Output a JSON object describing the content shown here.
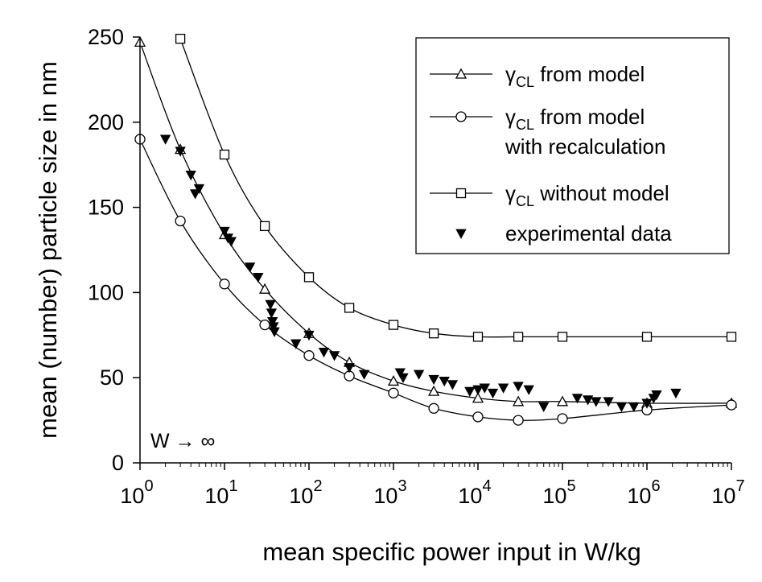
{
  "chart_data": {
    "type": "line",
    "xlabel": "mean specific power input in W/kg",
    "ylabel": "mean (number) particle size in nm",
    "xscale": "log",
    "xlim": [
      1,
      10000000
    ],
    "ylim": [
      0,
      250
    ],
    "x_tick_values": [
      1,
      10,
      100,
      1000,
      10000,
      100000,
      1000000,
      10000000
    ],
    "x_tick_exponents": [
      "0",
      "1",
      "2",
      "3",
      "4",
      "5",
      "6",
      "7"
    ],
    "x_tick_base": "10",
    "y_ticks": [
      "0",
      "50",
      "100",
      "150",
      "200",
      "250"
    ],
    "y_tick_values": [
      0,
      50,
      100,
      150,
      200,
      250
    ],
    "grid": false,
    "legend_position": "top-right",
    "annotation": "W → ∞",
    "series": [
      {
        "name": "γCL from model",
        "symbol": "γ",
        "subscript": "CL",
        "suffix": " from model",
        "marker": "triangle-open",
        "x": [
          1,
          3,
          10,
          30,
          100,
          300,
          1000,
          3000,
          10000,
          30000,
          100000,
          1000000,
          10000000
        ],
        "y": [
          247,
          184,
          134,
          102,
          76,
          59,
          48,
          42,
          38,
          36,
          36,
          35,
          35
        ]
      },
      {
        "name": "γCL from model with recalculation",
        "symbol": "γ",
        "subscript": "CL",
        "suffix": " from model",
        "suffix2": "with recalculation",
        "marker": "circle-open",
        "x": [
          1,
          3,
          10,
          30,
          100,
          300,
          1000,
          3000,
          10000,
          30000,
          100000,
          1000000,
          10000000
        ],
        "y": [
          190,
          142,
          105,
          81,
          63,
          51,
          41,
          32,
          27,
          25,
          26,
          31,
          34
        ]
      },
      {
        "name": "γCL without model",
        "symbol": "γ",
        "subscript": "CL",
        "suffix": " without model",
        "marker": "square-open",
        "x": [
          3,
          10,
          30,
          100,
          300,
          1000,
          3000,
          10000,
          30000,
          100000,
          1000000,
          10000000
        ],
        "y": [
          249,
          181,
          139,
          109,
          91,
          81,
          76,
          74,
          74,
          74,
          74,
          74
        ]
      },
      {
        "name": "experimental data",
        "label": "experimental data",
        "marker": "triangle-down-filled",
        "line": false,
        "x": [
          2,
          3,
          4,
          4.5,
          5,
          10,
          11,
          12,
          20,
          25,
          35,
          36,
          37,
          38,
          39,
          70,
          100,
          150,
          200,
          300,
          450,
          1200,
          1300,
          2000,
          3000,
          4000,
          5000,
          8000,
          10000,
          12000,
          15000,
          20000,
          30000,
          40000,
          60000,
          150000,
          200000,
          250000,
          350000,
          500000,
          700000,
          1000000,
          1200000,
          1300000,
          2200000
        ],
        "y": [
          190,
          183,
          169,
          158,
          161,
          136,
          132,
          130,
          115,
          109,
          93,
          88,
          83,
          80,
          77,
          70,
          75,
          65,
          63,
          56,
          52,
          53,
          50,
          52,
          49,
          48,
          46,
          42,
          43,
          44,
          41,
          44,
          45,
          43,
          33,
          38,
          37,
          36,
          36,
          33,
          33,
          35,
          38,
          40,
          41
        ]
      }
    ]
  }
}
